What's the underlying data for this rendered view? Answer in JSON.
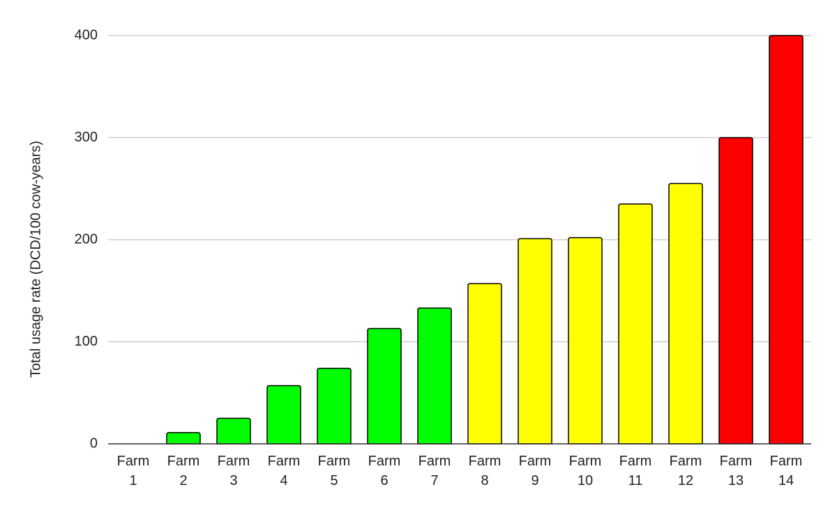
{
  "chart_data": {
    "type": "bar",
    "y_axis_label": "Total usage rate (DCD/100 cow-years)",
    "categories": [
      "Farm 1",
      "Farm 2",
      "Farm 3",
      "Farm 4",
      "Farm 5",
      "Farm 6",
      "Farm 7",
      "Farm 8",
      "Farm 9",
      "Farm 10",
      "Farm 11",
      "Farm 12",
      "Farm 13",
      "Farm 14"
    ],
    "values": [
      0,
      11,
      25,
      57,
      74,
      113,
      133,
      157,
      201,
      202,
      235,
      255,
      300,
      400
    ],
    "colors": [
      "#00ff00",
      "#00ff00",
      "#00ff00",
      "#00ff00",
      "#00ff00",
      "#00ff00",
      "#00ff00",
      "#ffff00",
      "#ffff00",
      "#ffff00",
      "#ffff00",
      "#ffff00",
      "#ff0000",
      "#ff0000"
    ],
    "ylim": [
      0,
      400
    ],
    "yticks": [
      0,
      100,
      200,
      300,
      400
    ],
    "grid": true
  }
}
